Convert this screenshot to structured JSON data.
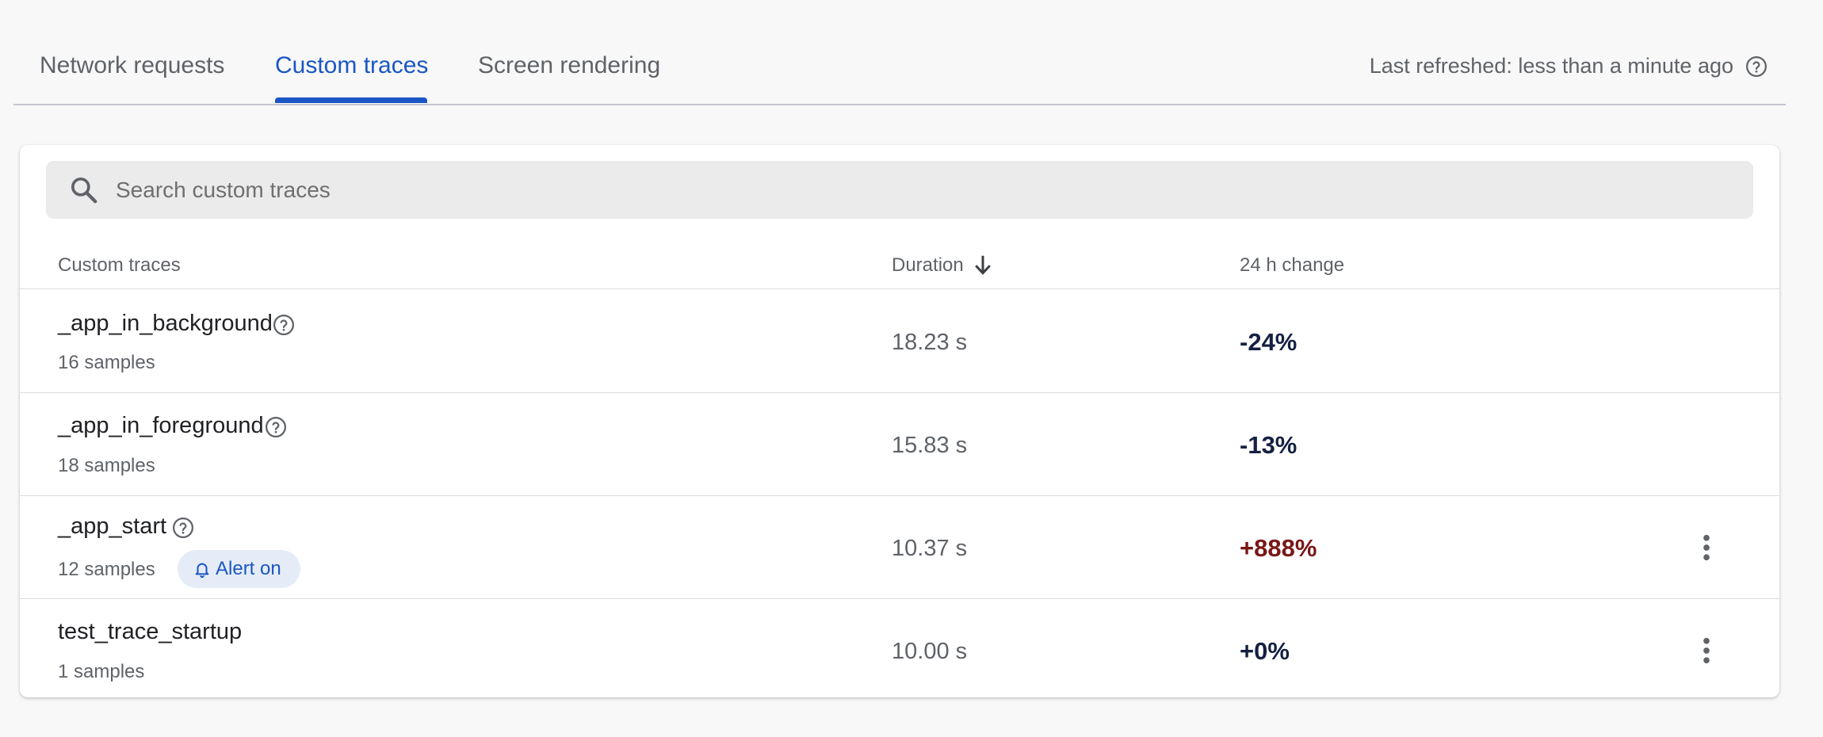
{
  "tabs": [
    {
      "label": "Network requests"
    },
    {
      "label": "Custom traces"
    },
    {
      "label": "Screen rendering"
    }
  ],
  "active_tab": "Custom traces",
  "last_refreshed": "Last refreshed: less than a minute ago",
  "search": {
    "placeholder": "Search custom traces",
    "value": ""
  },
  "table": {
    "columns": {
      "name": "Custom traces",
      "duration": "Duration",
      "change": "24 h change"
    },
    "sort": {
      "column": "Duration",
      "direction": "descending"
    },
    "rows": [
      {
        "name": "_app_in_background",
        "samples": "16 samples",
        "duration": "18.23 s",
        "change": "-24%"
      },
      {
        "name": "_app_in_foreground",
        "samples": "18 samples",
        "duration": "15.83 s",
        "change": "-13%"
      },
      {
        "name": "_app_start",
        "samples": "12 samples",
        "alert": "Alert on",
        "duration": "10.37 s",
        "change": "+888%"
      },
      {
        "name": "test_trace_startup",
        "samples": "1 samples",
        "duration": "10.00 s",
        "change": "+0%"
      }
    ]
  },
  "colors": {
    "accent": "#1a56c4",
    "change_default": "#152042",
    "change_regression": "#7a1717",
    "alert_chip_bg": "#e5ecf8"
  }
}
